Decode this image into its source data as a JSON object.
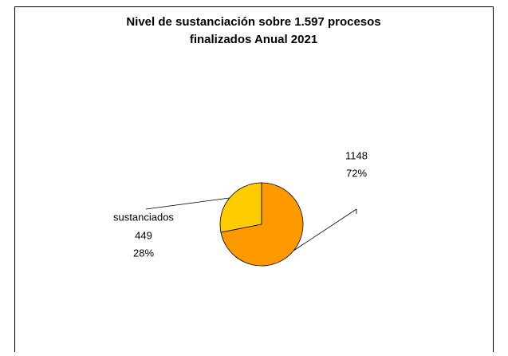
{
  "chart_data": {
    "type": "pie",
    "title": "Nivel de sustanciación sobre 1.597 procesos finalizados Anual 2021",
    "categories": [
      "sustanciados",
      null
    ],
    "values": [
      449,
      1148
    ],
    "percent_labels": [
      "28%",
      "72%"
    ],
    "colors": [
      "#ffcc00",
      "#ff9900"
    ]
  }
}
